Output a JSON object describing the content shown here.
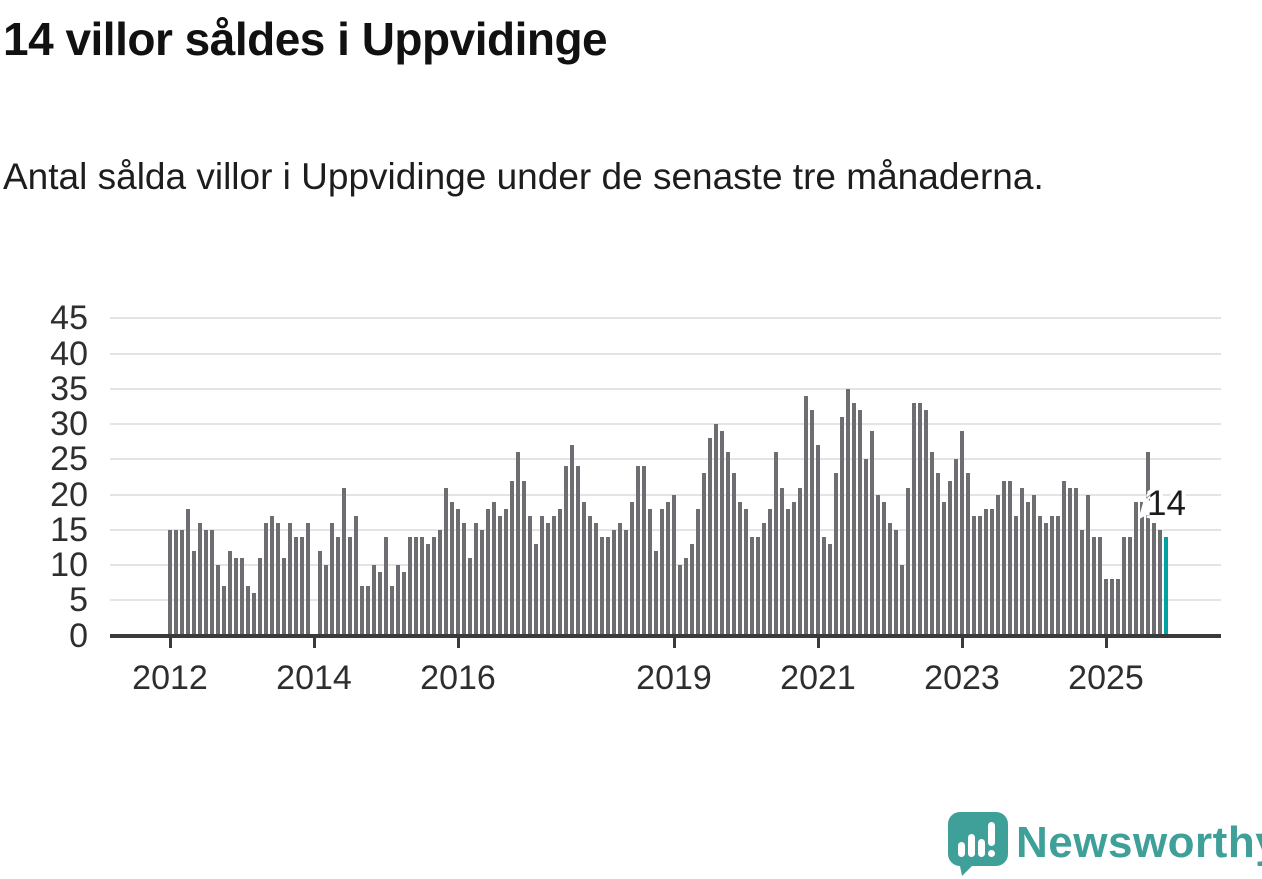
{
  "title": "14 villor såldes i Uppvidinge",
  "subtitle": "Antal sålda villor i Uppvidinge under de senaste tre månaderna.",
  "branding": {
    "name": "Newsworthy",
    "color": "#3f9f99",
    "icon": "newsworthy-speech-bubble-chart-icon"
  },
  "chart_data": {
    "type": "bar",
    "title": "14 villor såldes i Uppvidinge",
    "xlabel": "",
    "ylabel": "",
    "start_month": "2012-01",
    "end_month": "2025-11",
    "values": [
      15,
      15,
      15,
      18,
      12,
      16,
      15,
      15,
      10,
      7,
      12,
      11,
      11,
      7,
      6,
      11,
      16,
      17,
      16,
      11,
      16,
      14,
      14,
      16,
      0,
      12,
      10,
      16,
      14,
      21,
      14,
      17,
      7,
      7,
      10,
      9,
      14,
      7,
      10,
      9,
      14,
      14,
      14,
      13,
      14,
      15,
      21,
      19,
      18,
      16,
      11,
      16,
      15,
      18,
      19,
      17,
      18,
      22,
      26,
      22,
      17,
      13,
      17,
      16,
      17,
      18,
      24,
      27,
      24,
      19,
      17,
      16,
      14,
      14,
      15,
      16,
      15,
      19,
      24,
      24,
      18,
      12,
      18,
      19,
      20,
      10,
      11,
      13,
      18,
      23,
      28,
      30,
      29,
      26,
      23,
      19,
      18,
      14,
      14,
      16,
      18,
      26,
      21,
      18,
      19,
      21,
      34,
      32,
      27,
      14,
      13,
      23,
      31,
      35,
      33,
      32,
      25,
      29,
      20,
      19,
      16,
      15,
      10,
      21,
      33,
      33,
      32,
      26,
      23,
      19,
      22,
      25,
      29,
      23,
      17,
      17,
      18,
      18,
      20,
      22,
      22,
      17,
      21,
      19,
      20,
      17,
      16,
      17,
      17,
      22,
      21,
      21,
      15,
      20,
      14,
      14,
      8,
      8,
      8,
      14,
      14,
      19,
      19,
      26,
      16,
      15,
      14
    ],
    "ylim": [
      0,
      45
    ],
    "yticks": [
      0,
      5,
      10,
      15,
      20,
      25,
      30,
      35,
      40,
      45
    ],
    "xticks": [
      {
        "label": "2012",
        "month_index": 0
      },
      {
        "label": "2014",
        "month_index": 24
      },
      {
        "label": "2016",
        "month_index": 48
      },
      {
        "label": "2019",
        "month_index": 84
      },
      {
        "label": "2021",
        "month_index": 108
      },
      {
        "label": "2023",
        "month_index": 132
      },
      {
        "label": "2025",
        "month_index": 156
      }
    ],
    "highlight": {
      "index": 166,
      "value": 14,
      "label": "14",
      "color": "#00a2a2"
    },
    "bar_color": "#6e6e72",
    "grid": true,
    "legend": "none"
  }
}
